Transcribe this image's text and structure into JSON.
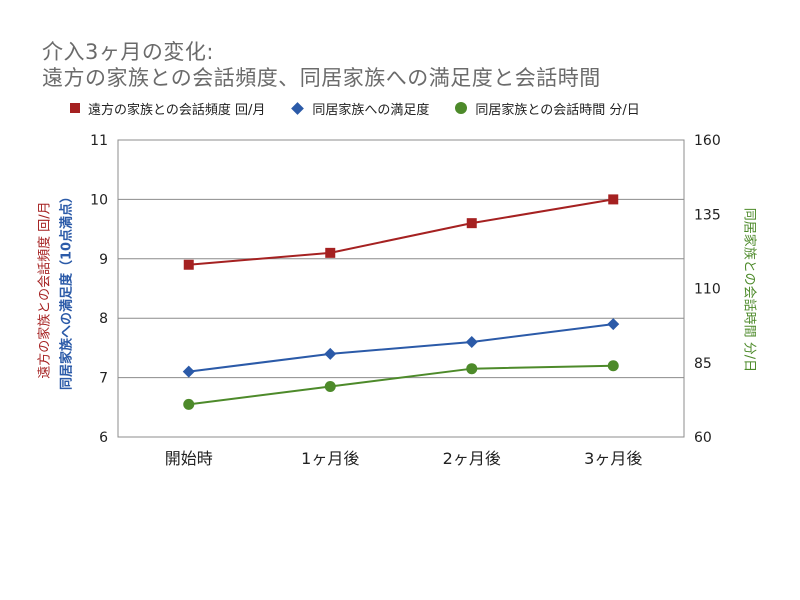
{
  "title_lines": [
    "介入3ヶ月の変化:",
    "遠方の家族との会話頻度、同居家族への満足度と会話時間"
  ],
  "legend": [
    {
      "label": "遠方の家族との会話頻度 回/月",
      "marker": "square",
      "color": "#a52121"
    },
    {
      "label": "同居家族への満足度",
      "marker": "diamond",
      "color": "#2b5aa8"
    },
    {
      "label": "同居家族との会話時間 分/日",
      "marker": "circle",
      "color": "#4d8a2a"
    }
  ],
  "axis_titles": {
    "y_left_1": "遠方の家族との会話頻度 回/月",
    "y_left_2": "同居家族への満足度（10点満点）",
    "y_right": "同居家族との会話時間 分/日"
  },
  "chart_data": {
    "type": "line",
    "categories": [
      "開始時",
      "1ヶ月後",
      "2ヶ月後",
      "3ヶ月後"
    ],
    "y_left": {
      "range": [
        6,
        11
      ],
      "ticks": [
        6,
        7,
        8,
        9,
        10,
        11
      ]
    },
    "y_right": {
      "range": [
        60,
        160
      ],
      "ticks": [
        60,
        85,
        110,
        135,
        160
      ]
    },
    "grid": true,
    "legend_position": "top",
    "series": [
      {
        "name": "遠方の家族との会話頻度 回/月",
        "axis": "left",
        "marker": "square",
        "color": "#a52121",
        "values": [
          8.9,
          9.1,
          9.6,
          10.0
        ]
      },
      {
        "name": "同居家族への満足度",
        "axis": "left",
        "marker": "diamond",
        "color": "#2b5aa8",
        "values": [
          7.1,
          7.4,
          7.6,
          7.9
        ]
      },
      {
        "name": "同居家族との会話時間 分/日",
        "axis": "right",
        "marker": "circle",
        "color": "#4d8a2a",
        "values": [
          71,
          77,
          83,
          84
        ]
      }
    ]
  },
  "colors": {
    "title": "#6b6b6b",
    "grid": "#8c8c8c",
    "axis_left_1": "#a52121",
    "axis_left_2": "#2b5aa8",
    "axis_right": "#4d8a2a"
  }
}
